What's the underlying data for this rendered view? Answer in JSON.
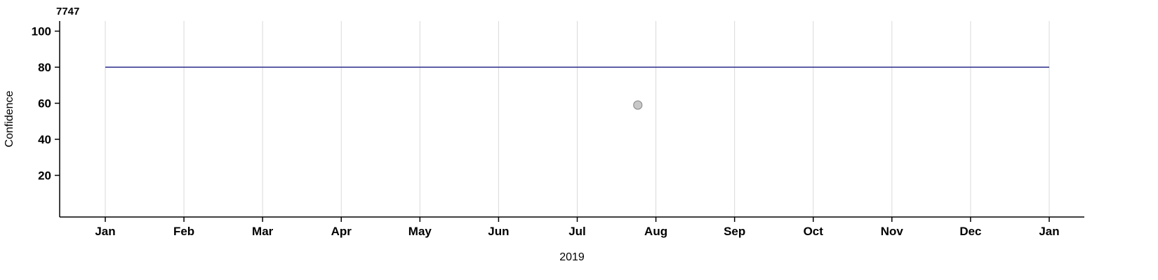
{
  "chart_data": {
    "type": "line",
    "title": "7747",
    "xlabel": "2019",
    "ylabel": "Confidence",
    "x_tick_labels": [
      "Jan",
      "Feb",
      "Mar",
      "Apr",
      "May",
      "Jun",
      "Jul",
      "Aug",
      "Sep",
      "Oct",
      "Nov",
      "Dec",
      "Jan"
    ],
    "y_ticks": [
      20,
      40,
      60,
      80,
      100
    ],
    "ylim": [
      -3,
      106
    ],
    "grid": "vertical-only",
    "legend": "none",
    "colors": {
      "axis": "#000000",
      "grid": "#d9d9d9",
      "background": "#ffffff"
    },
    "series": [
      {
        "name": "confidence-threshold-line",
        "kind": "hline",
        "y": 80,
        "x_start_month": 0,
        "x_end_month": 12,
        "color": "#2a2a8c"
      },
      {
        "name": "observation-point",
        "kind": "point",
        "x_month": 6.77,
        "y": 59,
        "fill": "#c8c8c8",
        "stroke": "#8f8f8f"
      }
    ]
  }
}
